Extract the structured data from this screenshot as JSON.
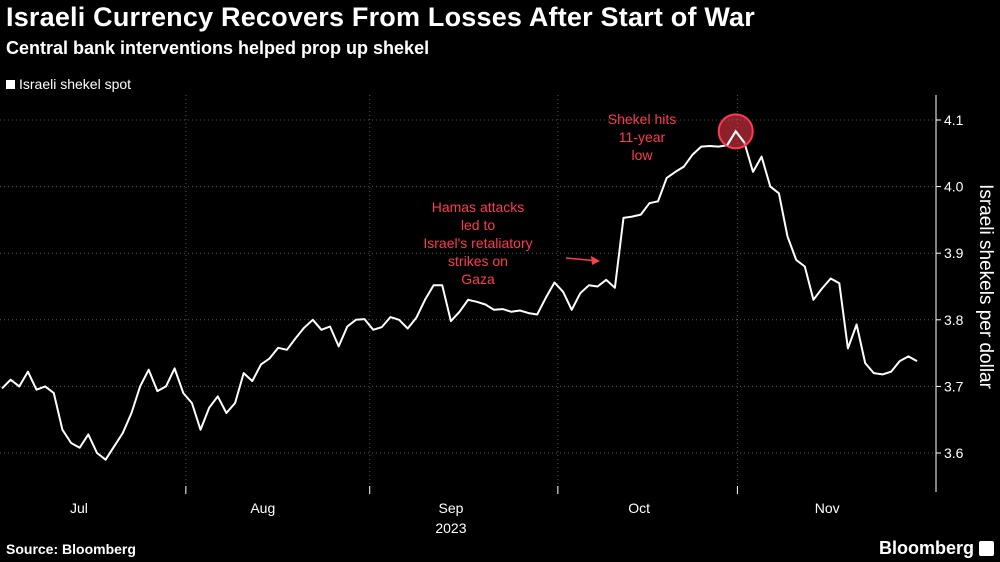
{
  "header": {
    "title": "Israeli Currency Recovers From Losses After Start of War",
    "subtitle": "Central bank interventions helped prop up shekel"
  },
  "legend": {
    "series_label": "Israeli shekel spot"
  },
  "footer": {
    "source": "Source: Bloomberg",
    "brand": "Bloomberg"
  },
  "colors": {
    "background": "#000000",
    "line": "#ffffff",
    "annotation": "#ff3b4f",
    "grid": "#555555"
  },
  "chart_data": {
    "type": "line",
    "title": "Israeli Currency Recovers From Losses After Start of War",
    "subtitle": "Central bank interventions helped prop up shekel",
    "xlabel": "2023",
    "ylabel": "Israeli shekels per dollar",
    "ylim": [
      3.55,
      4.12
    ],
    "yticks": [
      "4.1",
      "4.0",
      "3.9",
      "3.8",
      "3.7",
      "3.6"
    ],
    "ytick_values": [
      4.1,
      4.0,
      3.9,
      3.8,
      3.7,
      3.6
    ],
    "xticks": [
      "Jul",
      "Aug",
      "Sep",
      "Oct",
      "Nov"
    ],
    "xtick_index": [
      18,
      61,
      105,
      149,
      193
    ],
    "month_boundaries": [
      0,
      43,
      86,
      130,
      172,
      214
    ],
    "year_label": "2023",
    "grid": true,
    "series": [
      {
        "name": "Israeli shekel spot",
        "values": [
          3.697,
          3.71,
          3.7,
          3.722,
          3.695,
          3.7,
          3.69,
          3.635,
          3.615,
          3.608,
          3.628,
          3.6,
          3.59,
          3.61,
          3.63,
          3.66,
          3.7,
          3.725,
          3.693,
          3.7,
          3.727,
          3.69,
          3.675,
          3.635,
          3.668,
          3.685,
          3.66,
          3.675,
          3.72,
          3.708,
          3.733,
          3.742,
          3.758,
          3.755,
          3.772,
          3.788,
          3.8,
          3.785,
          3.79,
          3.76,
          3.79,
          3.8,
          3.801,
          3.785,
          3.789,
          3.804,
          3.8,
          3.787,
          3.803,
          3.83,
          3.852,
          3.852,
          3.798,
          3.812,
          3.83,
          3.827,
          3.823,
          3.815,
          3.816,
          3.812,
          3.814,
          3.81,
          3.808,
          3.833,
          3.856,
          3.842,
          3.815,
          3.84,
          3.852,
          3.85,
          3.86,
          3.848,
          3.953,
          3.955,
          3.958,
          3.975,
          3.978,
          4.013,
          4.022,
          4.03,
          4.048,
          4.06,
          4.061,
          4.06,
          4.062,
          4.083,
          4.066,
          4.022,
          4.045,
          4.0,
          3.99,
          3.925,
          3.89,
          3.88,
          3.83,
          3.847,
          3.862,
          3.855,
          3.757,
          3.793,
          3.735,
          3.72,
          3.718,
          3.722,
          3.738,
          3.745,
          3.738
        ]
      }
    ],
    "annotations": [
      {
        "lines": [
          "Hamas attacks",
          "led to",
          "Israel's retaliatory",
          "strikes on",
          "Gaza"
        ]
      },
      {
        "lines": [
          "Shekel hits",
          "11-year",
          "low"
        ]
      }
    ]
  }
}
